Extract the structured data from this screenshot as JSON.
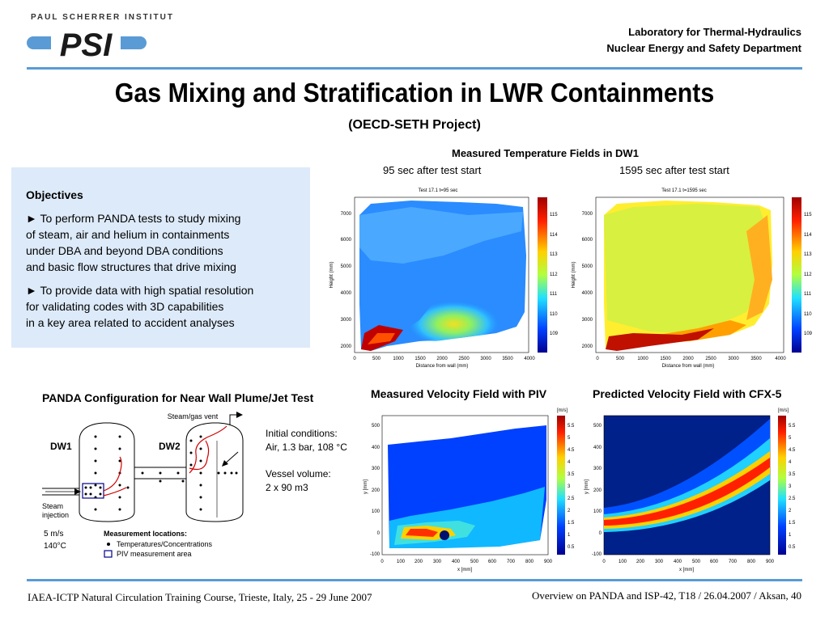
{
  "header": {
    "logo_top": "PAUL SCHERRER INSTITUT",
    "logo": "PSI",
    "lab": "Laboratory for Thermal-Hydraulics",
    "dept": "Nuclear Energy and Safety Department"
  },
  "title": "Gas Mixing and Stratification in LWR Containments",
  "subtitle": "(OECD-SETH Project)",
  "objectives": {
    "heading": "Objectives",
    "lines": [
      "► To perform PANDA tests to study mixing",
      "   of steam, air and helium in containments",
      "   under DBA and beyond DBA conditions",
      "   and basic flow structures that drive mixing",
      "► To provide data with high spatial resolution",
      "   for validating codes with 3D capabilities",
      "   in a key area related to accident analyses"
    ]
  },
  "temperature": {
    "caption": "Measured Temperature Fields in DW1",
    "left_caption": "95 sec after test start",
    "right_caption": "1595 sec after test start",
    "left_plot_title": "Test 17.1   t=95 sec",
    "right_plot_title": "Test 17.1   t=1595 sec",
    "ylabel": "Height (mm)",
    "xlabel": "Distance from wall (mm)",
    "y_ticks": [
      "7000",
      "6000",
      "5000",
      "4000",
      "3000",
      "2000"
    ],
    "x_ticks": [
      "0",
      "500",
      "1000",
      "1500",
      "2000",
      "2500",
      "3000",
      "3500",
      "4000"
    ],
    "colorbar_ticks": [
      "115",
      "114",
      "113",
      "112",
      "111",
      "110",
      "109"
    ]
  },
  "panda": {
    "caption": "PANDA Configuration for Near Wall Plume/Jet Test",
    "vent": "Steam/gas vent",
    "dw1": "DW1",
    "dw2": "DW2",
    "init_label": "Initial conditions:",
    "init_value": "Air, 1.3 bar, 108 °C",
    "vol_label": "Vessel volume:",
    "vol_value": "2 x 90 m3",
    "steam_1": "Steam",
    "steam_2": "injection",
    "speed": "5 m/s",
    "temp": "140°C",
    "legend_title": "Measurement locations:",
    "legend_1": "Temperatures/Concentrations",
    "legend_2": "PIV measurement area"
  },
  "piv": {
    "caption": "Measured Velocity Field with PIV",
    "unit": "[m/s]",
    "xlabel": "x [mm]",
    "ylabel": "y [mm]",
    "y_ticks": [
      "500",
      "400",
      "300",
      "200",
      "100",
      "0",
      "-100"
    ],
    "x_ticks": [
      "0",
      "100",
      "200",
      "300",
      "400",
      "500",
      "600",
      "700",
      "800",
      "900"
    ],
    "colorbar_ticks": [
      "5.5",
      "5",
      "4.5",
      "4",
      "3.5",
      "3",
      "2.5",
      "2",
      "1.5",
      "1",
      "0.5"
    ]
  },
  "cfx": {
    "caption": "Predicted Velocity Field with CFX-5",
    "unit": "[m/s]",
    "xlabel": "x [mm]",
    "ylabel": "y [mm]",
    "y_ticks": [
      "500",
      "400",
      "300",
      "200",
      "100",
      "0",
      "-100"
    ],
    "x_ticks": [
      "0",
      "100",
      "200",
      "300",
      "400",
      "500",
      "600",
      "700",
      "800",
      "900"
    ],
    "colorbar_ticks": [
      "5.5",
      "5",
      "4.5",
      "4",
      "3.5",
      "3",
      "2.5",
      "2",
      "1.5",
      "1",
      "0.5"
    ]
  },
  "footer": {
    "left": "IAEA-ICTP Natural Circulation Training Course, Trieste, Italy, 25 - 29 June 2007",
    "right": "Overview on PANDA and ISP-42, T18  / 26.04.2007 / Aksan, 40"
  }
}
